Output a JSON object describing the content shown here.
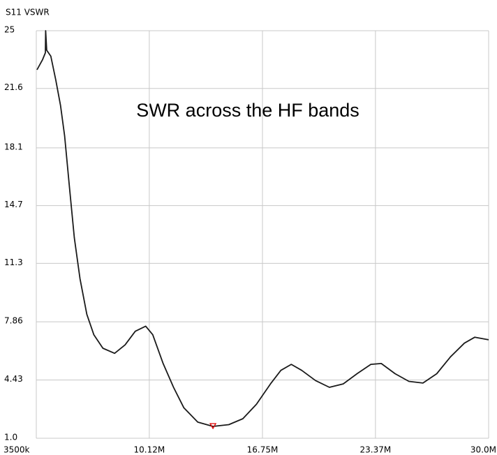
{
  "chart_data": {
    "type": "line",
    "y_label": "S11 VSWR",
    "annotation": "SWR across the HF bands",
    "x": [
      3.54,
      3.87,
      4.03,
      4.05,
      4.11,
      4.35,
      4.64,
      4.92,
      5.16,
      5.45,
      5.73,
      6.06,
      6.46,
      6.87,
      7.4,
      8.09,
      8.7,
      9.3,
      9.91,
      10.32,
      10.93,
      11.54,
      12.14,
      12.96,
      13.85,
      14.78,
      15.6,
      16.4,
      17.22,
      17.83,
      18.44,
      19.05,
      19.86,
      20.67,
      21.48,
      22.29,
      23.1,
      23.71,
      24.52,
      25.33,
      26.15,
      26.96,
      27.77,
      28.58,
      29.19,
      30.0
    ],
    "values": [
      22.7,
      23.3,
      23.7,
      25,
      23.85,
      23.5,
      22.1,
      20.6,
      18.8,
      15.7,
      12.8,
      10.4,
      8.3,
      7.1,
      6.3,
      6.0,
      6.5,
      7.3,
      7.6,
      7.1,
      5.4,
      4.0,
      2.8,
      1.95,
      1.7,
      1.8,
      2.15,
      3.0,
      4.2,
      5.0,
      5.35,
      5.0,
      4.4,
      4.0,
      4.2,
      4.8,
      5.35,
      5.4,
      4.8,
      4.35,
      4.25,
      4.8,
      5.8,
      6.6,
      6.95,
      6.8
    ],
    "color": "#1a1a1a",
    "marker": {
      "x": 13.85,
      "y": 1.7,
      "color": "#e00000"
    },
    "xlim": [
      3.5,
      30.0
    ],
    "xticks": [
      {
        "value": 3.5,
        "label": "3500k"
      },
      {
        "value": 10.12,
        "label": "10.12M"
      },
      {
        "value": 16.75,
        "label": "16.75M"
      },
      {
        "value": 23.37,
        "label": "23.37M"
      },
      {
        "value": 30.0,
        "label": "30.0M"
      }
    ],
    "ylim": [
      1,
      25
    ],
    "yticks": [
      {
        "value": 1,
        "label": "1.0"
      },
      4.43,
      7.86,
      11.3,
      14.7,
      18.1,
      21.6,
      25
    ],
    "grid": true
  }
}
